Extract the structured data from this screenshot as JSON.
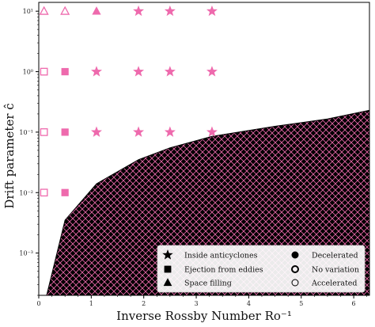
{
  "chart_data": {
    "type": "scatter",
    "title": "",
    "xlabel": "Inverse Rossby Number Ro⁻¹",
    "ylabel": "Drift parameter ĉ",
    "y_scale": "log",
    "xlim": [
      0,
      6.3
    ],
    "ylim": [
      0.0002,
      14
    ],
    "x_ticks": [
      0,
      1,
      2,
      3,
      4,
      5,
      6
    ],
    "x_tick_labels": [
      "0",
      "1",
      "2",
      "3",
      "4",
      "5",
      "6"
    ],
    "y_ticks": [
      0.001,
      0.01,
      0.1,
      1,
      10
    ],
    "y_tick_labels": [
      "10⁻³",
      "10⁻²",
      "10⁻¹",
      "10⁰",
      "10¹"
    ],
    "grid": false,
    "legend_position": "bottom-right",
    "colors": {
      "marker": "#ee6aad",
      "region_fill": "#000000",
      "hatch": "#ee6aad",
      "axis": "#000000",
      "legend_border": "#cccccc"
    },
    "shaded_region": {
      "description_hidden": true,
      "hatch": "crosshatch",
      "boundary": [
        {
          "x": 0.15,
          "y": 0.0002
        },
        {
          "x": 0.5,
          "y": 0.0035
        },
        {
          "x": 1.1,
          "y": 0.014
        },
        {
          "x": 1.9,
          "y": 0.035
        },
        {
          "x": 2.5,
          "y": 0.055
        },
        {
          "x": 3.3,
          "y": 0.085
        },
        {
          "x": 4.5,
          "y": 0.125
        },
        {
          "x": 5.5,
          "y": 0.165
        },
        {
          "x": 6.3,
          "y": 0.23
        }
      ]
    },
    "points": [
      {
        "x": 0.1,
        "y": 10,
        "marker": "triangle",
        "filled": false
      },
      {
        "x": 0.5,
        "y": 10,
        "marker": "triangle",
        "filled": false
      },
      {
        "x": 1.1,
        "y": 10,
        "marker": "triangle",
        "filled": true
      },
      {
        "x": 1.9,
        "y": 10,
        "marker": "star",
        "filled": true
      },
      {
        "x": 2.5,
        "y": 10,
        "marker": "star",
        "filled": true
      },
      {
        "x": 3.3,
        "y": 10,
        "marker": "star",
        "filled": true
      },
      {
        "x": 0.1,
        "y": 1,
        "marker": "square",
        "filled": false
      },
      {
        "x": 0.5,
        "y": 1,
        "marker": "square",
        "filled": true
      },
      {
        "x": 1.1,
        "y": 1,
        "marker": "star",
        "filled": true
      },
      {
        "x": 1.9,
        "y": 1,
        "marker": "star",
        "filled": true
      },
      {
        "x": 2.5,
        "y": 1,
        "marker": "star",
        "filled": true
      },
      {
        "x": 3.3,
        "y": 1,
        "marker": "star",
        "filled": true
      },
      {
        "x": 0.1,
        "y": 0.1,
        "marker": "square",
        "filled": false
      },
      {
        "x": 0.5,
        "y": 0.1,
        "marker": "square",
        "filled": true
      },
      {
        "x": 1.1,
        "y": 0.1,
        "marker": "star",
        "filled": true
      },
      {
        "x": 1.9,
        "y": 0.1,
        "marker": "star",
        "filled": true
      },
      {
        "x": 2.5,
        "y": 0.1,
        "marker": "star",
        "filled": true
      },
      {
        "x": 3.3,
        "y": 0.1,
        "marker": "star",
        "filled": true
      },
      {
        "x": 0.1,
        "y": 0.01,
        "marker": "square",
        "filled": false
      },
      {
        "x": 0.5,
        "y": 0.01,
        "marker": "square",
        "filled": true
      }
    ],
    "legend": {
      "left": [
        {
          "label": "Inside anticyclones",
          "marker": "star",
          "fill": "solid"
        },
        {
          "label": "Ejection from eddies",
          "marker": "square",
          "fill": "solid"
        },
        {
          "label": "Space filling",
          "marker": "triangle",
          "fill": "solid"
        }
      ],
      "right": [
        {
          "label": "Decelerated",
          "marker": "circle",
          "fill": "solid"
        },
        {
          "label": "No variation",
          "marker": "circle",
          "fill": "thick-outline"
        },
        {
          "label": "Accelerated",
          "marker": "circle",
          "fill": "outline"
        }
      ]
    }
  }
}
